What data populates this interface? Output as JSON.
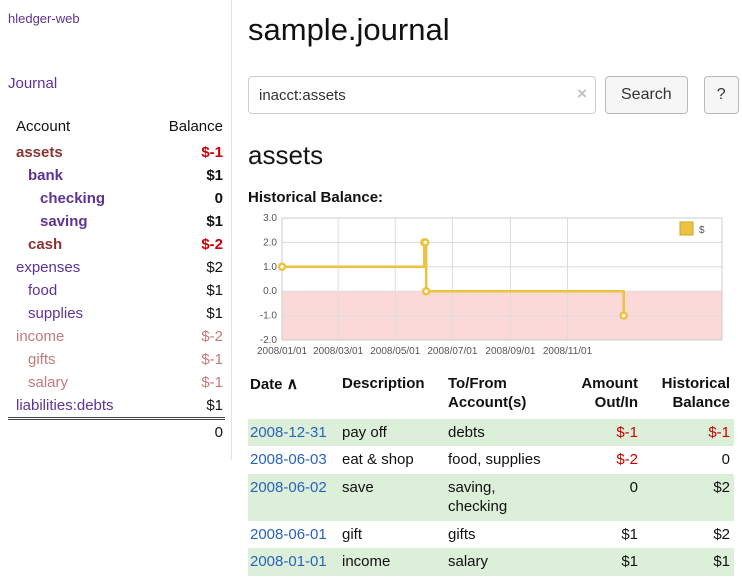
{
  "colors": {
    "link_purple": "#5e3397",
    "link_blue": "#2a62bc",
    "negative_strong": "#cc0000",
    "negative_account_name": "#8b3434",
    "negative_muted": "#c47a7a",
    "row_green": "#dcefd8",
    "chart_line_gold": "#edc240",
    "chart_negative_region": "#fbd9d9"
  },
  "sidebar": {
    "app_title": "hledger-web",
    "journal_link": "Journal",
    "headers": {
      "account": "Account",
      "balance": "Balance"
    },
    "accounts": [
      {
        "name": "assets",
        "balance": "$-1",
        "indent": 0,
        "bold": true,
        "name_style": "negdark",
        "bal_style": "neg"
      },
      {
        "name": "bank",
        "balance": "$1",
        "indent": 1,
        "bold": true,
        "name_style": "purple",
        "bal_style": "pos"
      },
      {
        "name": "checking",
        "balance": "0",
        "indent": 2,
        "bold": true,
        "name_style": "purple",
        "bal_style": "pos"
      },
      {
        "name": "saving",
        "balance": "$1",
        "indent": 2,
        "bold": true,
        "name_style": "purple",
        "bal_style": "pos"
      },
      {
        "name": "cash",
        "balance": "$-2",
        "indent": 1,
        "bold": true,
        "name_style": "negdark",
        "bal_style": "neg"
      },
      {
        "name": "expenses",
        "balance": "$2",
        "indent": 0,
        "bold": false,
        "name_style": "purple",
        "bal_style": "pos"
      },
      {
        "name": "food",
        "balance": "$1",
        "indent": 1,
        "bold": false,
        "name_style": "purple",
        "bal_style": "pos"
      },
      {
        "name": "supplies",
        "balance": "$1",
        "indent": 1,
        "bold": false,
        "name_style": "purple",
        "bal_style": "pos"
      },
      {
        "name": "income",
        "balance": "$-2",
        "indent": 0,
        "bold": false,
        "name_style": "negmuted",
        "bal_style": "negmuted"
      },
      {
        "name": "gifts",
        "balance": "$-1",
        "indent": 1,
        "bold": false,
        "name_style": "negmuted",
        "bal_style": "negmuted"
      },
      {
        "name": "salary",
        "balance": "$-1",
        "indent": 1,
        "bold": false,
        "name_style": "negmuted",
        "bal_style": "negmuted"
      },
      {
        "name": "liabilities:debts",
        "balance": "$1",
        "indent": 0,
        "bold": false,
        "name_style": "purple",
        "bal_style": "pos"
      }
    ],
    "total": "0"
  },
  "main": {
    "title": "sample.journal",
    "search": {
      "value": "inacct:assets",
      "clear_icon": "×",
      "button_label": "Search",
      "help_label": "?"
    },
    "account_heading": "assets",
    "chart_label": "Historical Balance:"
  },
  "register": {
    "headers": {
      "date": "Date",
      "sort_icon": "∧",
      "description": "Description",
      "accounts_line1": "To/From",
      "accounts_line2": "Account(s)",
      "amount_line1": "Amount",
      "amount_line2": "Out/In",
      "balance_line1": "Historical",
      "balance_line2": "Balance"
    },
    "rows": [
      {
        "date": "2008-12-31",
        "description": "pay off",
        "accounts": "debts",
        "amount": "$-1",
        "amount_neg": true,
        "balance": "$-1",
        "balance_neg": true
      },
      {
        "date": "2008-06-03",
        "description": "eat & shop",
        "accounts": "food, supplies",
        "amount": "$-2",
        "amount_neg": true,
        "balance": "0",
        "balance_neg": false
      },
      {
        "date": "2008-06-02",
        "description": "save",
        "accounts": "saving, checking",
        "amount": "0",
        "amount_neg": false,
        "balance": "$2",
        "balance_neg": false
      },
      {
        "date": "2008-06-01",
        "description": "gift",
        "accounts": "gifts",
        "amount": "$1",
        "amount_neg": false,
        "balance": "$2",
        "balance_neg": false
      },
      {
        "date": "2008-01-01",
        "description": "income",
        "accounts": "salary",
        "amount": "$1",
        "amount_neg": false,
        "balance": "$1",
        "balance_neg": false
      }
    ]
  },
  "chart_data": {
    "type": "line",
    "title": "Historical Balance",
    "legend": {
      "label": "$",
      "position": "top-right"
    },
    "series": [
      {
        "name": "$",
        "color": "#edc240",
        "steps": true,
        "points": [
          {
            "date": "2008-01-01",
            "day": 0,
            "value": 1
          },
          {
            "date": "2008-06-01",
            "day": 152,
            "value": 2
          },
          {
            "date": "2008-06-02",
            "day": 153,
            "value": 2
          },
          {
            "date": "2008-06-03",
            "day": 154,
            "value": 0
          },
          {
            "date": "2008-12-31",
            "day": 365,
            "value": -1
          }
        ]
      }
    ],
    "x_ticks": [
      {
        "label": "2008/01/01",
        "day": 0
      },
      {
        "label": "2008/03/01",
        "day": 60
      },
      {
        "label": "2008/05/01",
        "day": 121
      },
      {
        "label": "2008/07/01",
        "day": 182
      },
      {
        "label": "2008/09/01",
        "day": 244
      },
      {
        "label": "2008/11/01",
        "day": 305
      }
    ],
    "x_span_days": 470,
    "y_ticks": [
      "3.0",
      "2.0",
      "1.0",
      "0.0",
      "-1.0",
      "-2.0"
    ],
    "ylim": [
      -2,
      3
    ],
    "grid": true,
    "negative_region_color": "#fbd9d9"
  }
}
